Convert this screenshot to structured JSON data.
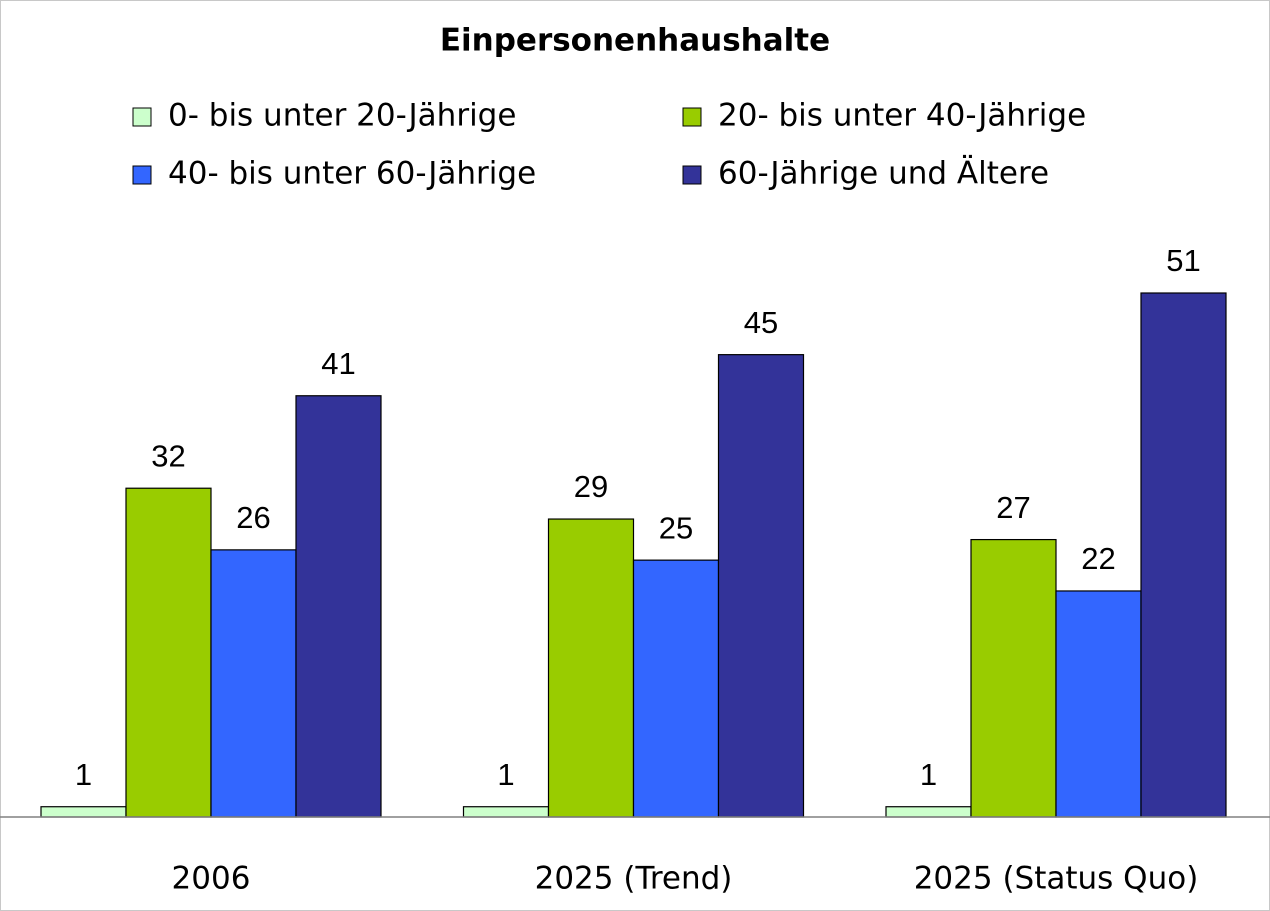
{
  "chart_data": {
    "type": "bar",
    "title": "Einpersonenhaushalte",
    "categories": [
      "2006",
      "2025 (Trend)",
      "2025 (Status Quo)"
    ],
    "series": [
      {
        "name": "0- bis unter 20-Jährige",
        "color": "#ccffcc",
        "values": [
          1,
          1,
          1
        ]
      },
      {
        "name": "20- bis unter 40-Jährige",
        "color": "#99cc00",
        "values": [
          32,
          29,
          27
        ]
      },
      {
        "name": "40- bis unter 60-Jährige",
        "color": "#3366ff",
        "values": [
          26,
          25,
          22
        ]
      },
      {
        "name": "60-Jährige und Ältere",
        "color": "#333399",
        "values": [
          41,
          45,
          51
        ]
      }
    ]
  }
}
